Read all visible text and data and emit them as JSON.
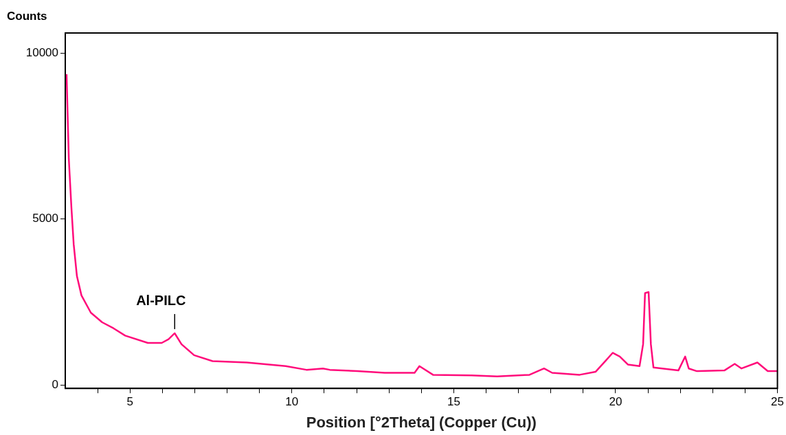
{
  "chart_data": {
    "type": "line",
    "xlabel": "Position [°2Theta] (Copper (Cu))",
    "ylabel": "Counts",
    "x": [
      3.04,
      3.11,
      3.19,
      3.26,
      3.36,
      3.5,
      3.79,
      4.14,
      4.49,
      4.85,
      5.55,
      5.98,
      6.19,
      6.38,
      6.59,
      6.98,
      7.55,
      8.61,
      9.81,
      10.45,
      10.96,
      11.17,
      12.02,
      12.87,
      13.79,
      13.94,
      14.36,
      15.55,
      16.34,
      17.34,
      17.79,
      18.04,
      18.89,
      19.38,
      19.68,
      19.91,
      20.13,
      20.38,
      20.74,
      20.85,
      20.91,
      21.02,
      21.09,
      21.17,
      21.94,
      22.15,
      22.26,
      22.51,
      23.36,
      23.68,
      23.89,
      24.38,
      24.7,
      25
    ],
    "series": [
      {
        "color": "#ff0a7a",
        "values": [
          9360,
          6800,
          5340,
          4240,
          3280,
          2700,
          2180,
          1890,
          1710,
          1490,
          1270,
          1270,
          1380,
          1560,
          1230,
          900,
          720,
          680,
          570,
          460,
          500,
          460,
          420,
          370,
          370,
          570,
          310,
          290,
          260,
          310,
          500,
          370,
          310,
          400,
          720,
          970,
          860,
          620,
          570,
          1230,
          2770,
          2800,
          1230,
          530,
          440,
          860,
          500,
          420,
          440,
          640,
          500,
          680,
          420,
          420
        ]
      }
    ],
    "annotations": [
      {
        "text": "Al-PILC",
        "x": 6.38,
        "y": 1560
      }
    ],
    "xlim": [
      3,
      25
    ],
    "ylim": [
      -100,
      10600
    ],
    "xticks": [
      {
        "value": 4,
        "label": null
      },
      5,
      {
        "value": 6,
        "label": null
      },
      {
        "value": 7,
        "label": null
      },
      {
        "value": 8,
        "label": null
      },
      {
        "value": 9,
        "label": null
      },
      10,
      {
        "value": 11,
        "label": null
      },
      {
        "value": 12,
        "label": null
      },
      {
        "value": 13,
        "label": null
      },
      {
        "value": 14,
        "label": null
      },
      15,
      {
        "value": 16,
        "label": null
      },
      {
        "value": 17,
        "label": null
      },
      {
        "value": 18,
        "label": null
      },
      {
        "value": 19,
        "label": null
      },
      20,
      {
        "value": 21,
        "label": null
      },
      {
        "value": 22,
        "label": null
      },
      {
        "value": 23,
        "label": null
      },
      {
        "value": 24,
        "label": null
      },
      25
    ],
    "yticks": [
      0,
      5000,
      10000
    ],
    "grid": false,
    "legend": false,
    "marker": "none",
    "line_style": "solid"
  }
}
